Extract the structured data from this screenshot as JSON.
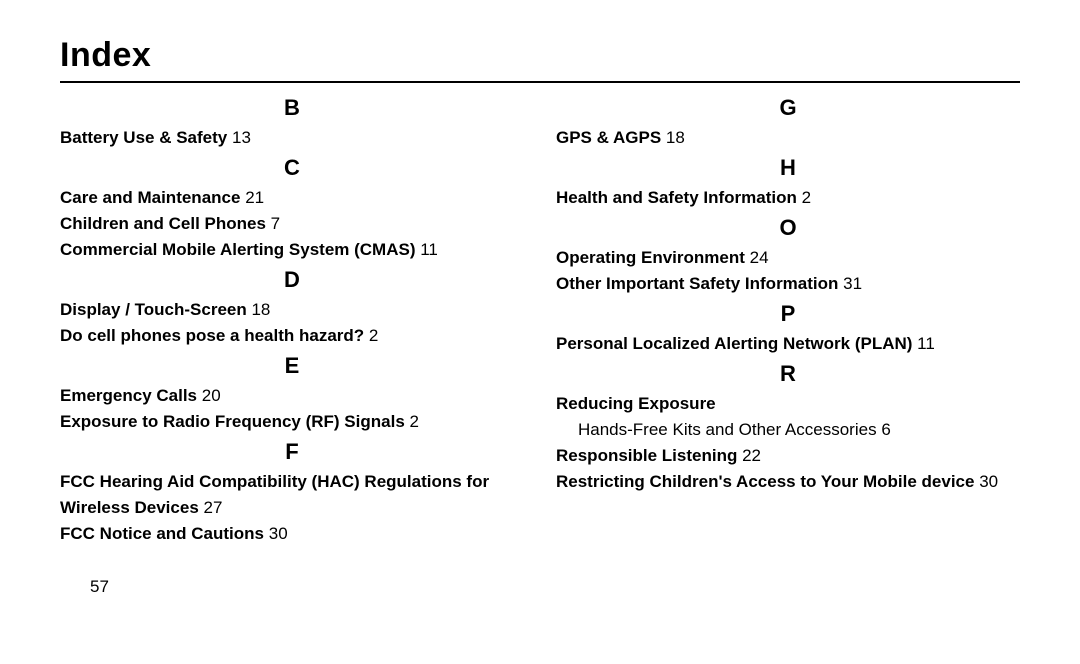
{
  "title": "Index",
  "page_number": "57",
  "left_column": [
    {
      "type": "letter",
      "value": "B"
    },
    {
      "type": "entry",
      "label": "Battery Use & Safety",
      "page": "13"
    },
    {
      "type": "letter",
      "value": "C"
    },
    {
      "type": "entry",
      "label": "Care and Maintenance",
      "page": "21"
    },
    {
      "type": "entry",
      "label": "Children and Cell Phones",
      "page": "7"
    },
    {
      "type": "entry",
      "label": "Commercial Mobile Alerting System (CMAS)",
      "page": "11"
    },
    {
      "type": "letter",
      "value": "D"
    },
    {
      "type": "entry",
      "label": "Display / Touch-Screen",
      "page": "18"
    },
    {
      "type": "entry",
      "label": "Do cell phones pose a health hazard?",
      "page": "2"
    },
    {
      "type": "letter",
      "value": "E"
    },
    {
      "type": "entry",
      "label": "Emergency Calls",
      "page": "20"
    },
    {
      "type": "entry",
      "label": "Exposure to Radio Frequency (RF) Signals",
      "page": "2"
    },
    {
      "type": "letter",
      "value": "F"
    },
    {
      "type": "entry",
      "label": "FCC Hearing Aid Compatibility (HAC) Regulations for Wireless Devices",
      "page": "27"
    },
    {
      "type": "entry",
      "label": "FCC Notice and Cautions",
      "page": "30"
    }
  ],
  "right_column": [
    {
      "type": "letter",
      "value": "G"
    },
    {
      "type": "entry",
      "label": "GPS & AGPS",
      "page": "18"
    },
    {
      "type": "letter",
      "value": "H"
    },
    {
      "type": "entry",
      "label": "Health and Safety Information",
      "page": "2"
    },
    {
      "type": "letter",
      "value": "O"
    },
    {
      "type": "entry",
      "label": "Operating Environment",
      "page": "24"
    },
    {
      "type": "entry",
      "label": "Other Important Safety Information",
      "page": "31"
    },
    {
      "type": "letter",
      "value": "P"
    },
    {
      "type": "entry",
      "label": "Personal Localized Alerting Network (PLAN)",
      "page": "11"
    },
    {
      "type": "letter",
      "value": "R"
    },
    {
      "type": "entry",
      "label": "Reducing Exposure",
      "page": ""
    },
    {
      "type": "subentry",
      "label": "Hands-Free Kits and Other Accessories",
      "page": "6"
    },
    {
      "type": "entry",
      "label": "Responsible Listening",
      "page": "22"
    },
    {
      "type": "entry",
      "label": "Restricting Children's Access to Your Mobile device",
      "page": "30"
    }
  ]
}
